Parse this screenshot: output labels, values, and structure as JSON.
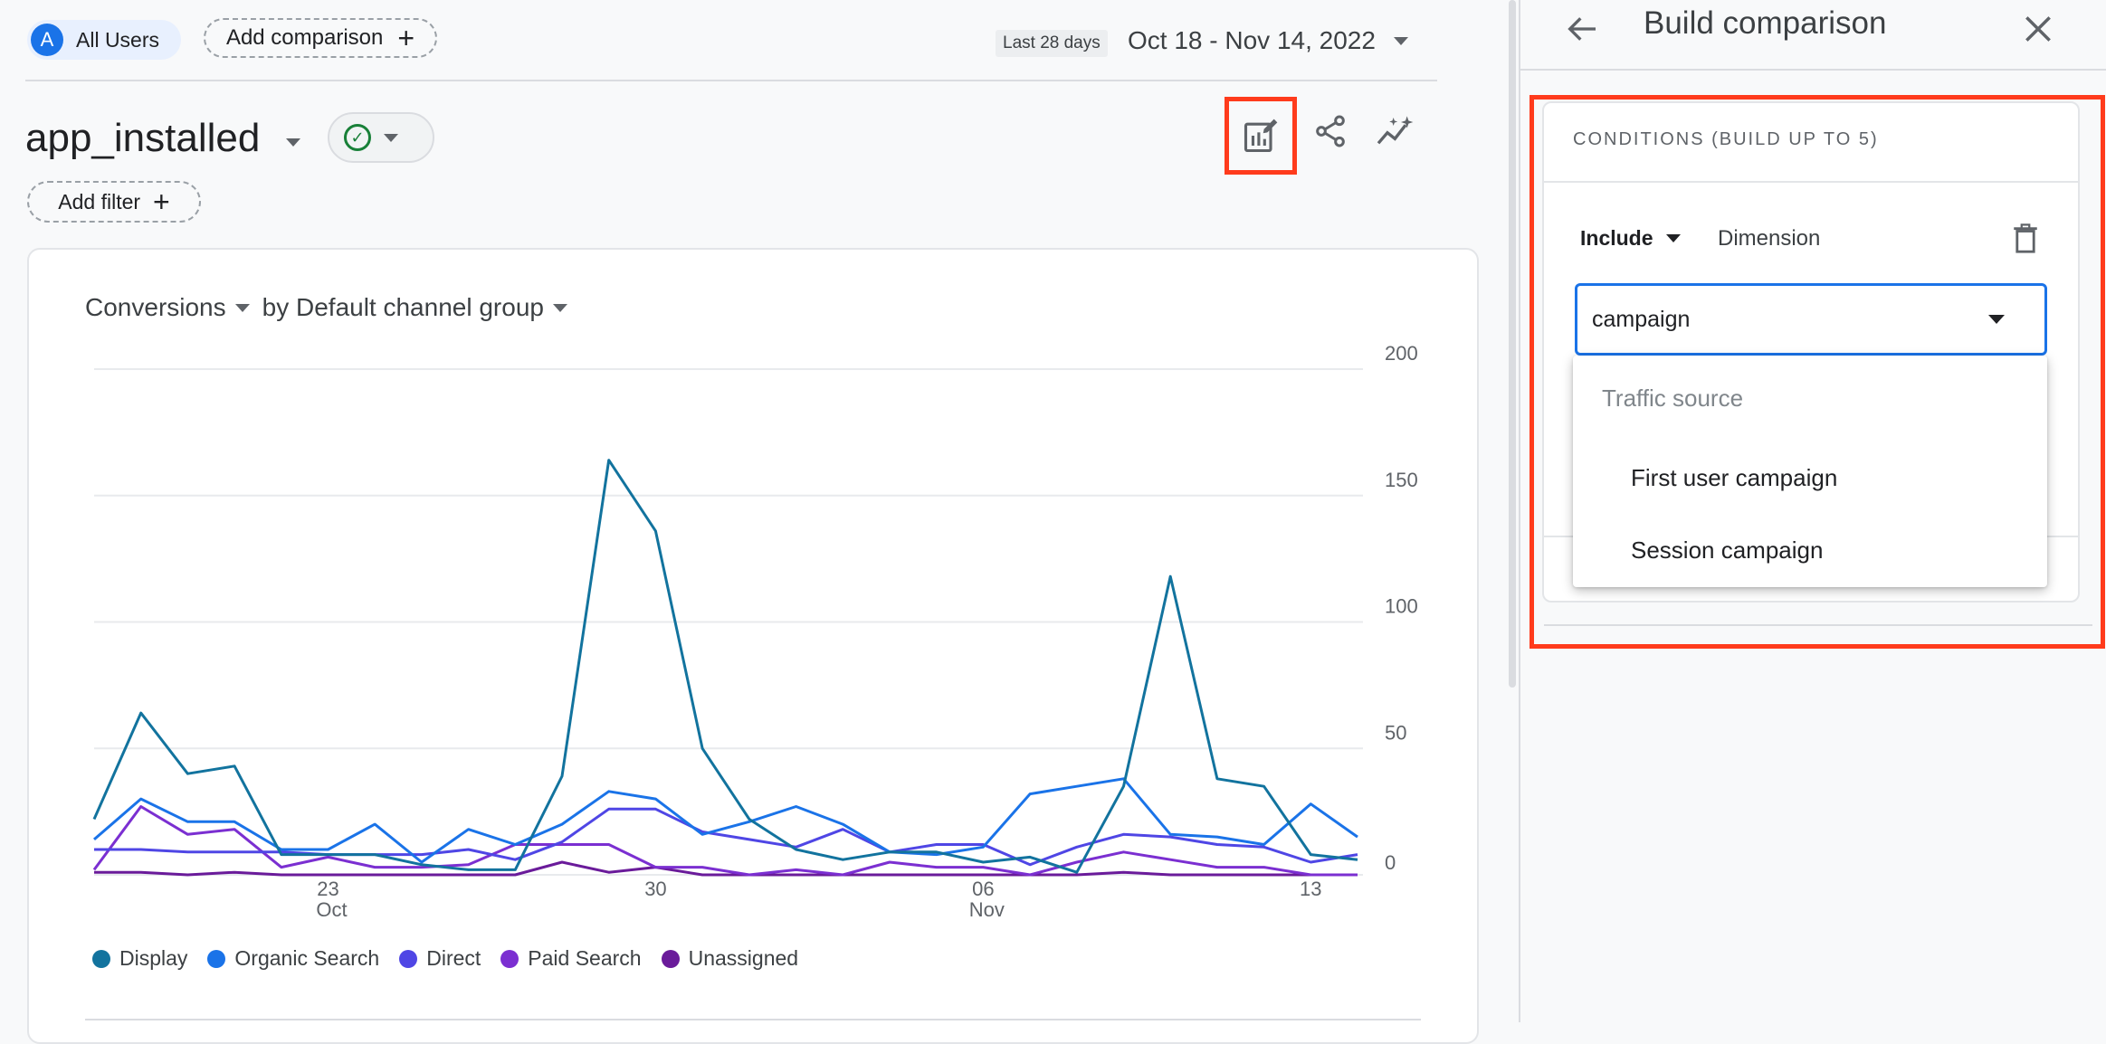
{
  "header": {
    "segment_avatar": "A",
    "segment_label": "All Users",
    "add_comparison_label": "Add comparison",
    "date_tag": "Last 28 days",
    "date_range": "Oct 18 - Nov 14, 2022"
  },
  "report": {
    "event_title": "app_installed",
    "add_filter_label": "Add filter",
    "metric_label": "Conversions",
    "dimension_label": "by Default channel group"
  },
  "icons": {
    "edit_report": "edit-report-icon",
    "share": "share-icon",
    "insights": "insights-icon"
  },
  "colors": {
    "accent": "#1a73e8",
    "highlight": "#ff3b1c",
    "success": "#188038"
  },
  "chart_data": {
    "type": "line",
    "x": [
      "Oct 18",
      "Oct 19",
      "Oct 20",
      "Oct 21",
      "Oct 22",
      "Oct 23",
      "Oct 24",
      "Oct 25",
      "Oct 26",
      "Oct 27",
      "Oct 28",
      "Oct 29",
      "Oct 30",
      "Oct 31",
      "Nov 1",
      "Nov 2",
      "Nov 3",
      "Nov 4",
      "Nov 5",
      "Nov 6",
      "Nov 7",
      "Nov 8",
      "Nov 9",
      "Nov 10",
      "Nov 11",
      "Nov 12",
      "Nov 13",
      "Nov 14"
    ],
    "x_tick_labels": [
      {
        "index": 5,
        "label": "23",
        "sub": "Oct"
      },
      {
        "index": 12,
        "label": "30",
        "sub": ""
      },
      {
        "index": 19,
        "label": "06",
        "sub": "Nov"
      },
      {
        "index": 26,
        "label": "13",
        "sub": ""
      }
    ],
    "y_ticks": [
      "200",
      "150",
      "100",
      "50",
      "0"
    ],
    "ylim": [
      0,
      200
    ],
    "grid": true,
    "legend_position": "bottom-left",
    "series": [
      {
        "name": "Display",
        "color": "#12739e",
        "values": [
          22,
          64,
          40,
          43,
          8,
          8,
          8,
          4,
          2,
          2,
          39,
          164,
          136,
          50,
          22,
          10,
          6,
          9,
          9,
          5,
          7,
          1,
          35,
          118,
          38,
          35,
          8,
          6
        ]
      },
      {
        "name": "Organic Search",
        "color": "#1a73e8",
        "values": [
          14,
          30,
          21,
          21,
          10,
          10,
          20,
          5,
          18,
          12,
          20,
          33,
          30,
          16,
          21,
          27,
          20,
          9,
          8,
          11,
          32,
          35,
          38,
          16,
          15,
          12,
          28,
          15
        ]
      },
      {
        "name": "Direct",
        "color": "#4f46e5",
        "values": [
          10,
          10,
          9,
          9,
          9,
          8,
          8,
          8,
          10,
          6,
          13,
          26,
          26,
          17,
          14,
          11,
          18,
          9,
          12,
          12,
          4,
          11,
          16,
          15,
          12,
          11,
          5,
          8
        ]
      },
      {
        "name": "Paid Search",
        "color": "#7b2fd1",
        "values": [
          2,
          27,
          16,
          18,
          3,
          7,
          3,
          3,
          4,
          12,
          12,
          12,
          3,
          3,
          0,
          2,
          0,
          5,
          3,
          3,
          0,
          5,
          9,
          6,
          3,
          3,
          0,
          0
        ]
      },
      {
        "name": "Unassigned",
        "color": "#6a1b9a",
        "values": [
          1,
          1,
          0,
          1,
          0,
          0,
          0,
          0,
          0,
          0,
          5,
          1,
          3,
          0,
          0,
          0,
          0,
          0,
          0,
          0,
          0,
          0,
          1,
          0,
          0,
          0,
          0,
          0
        ]
      }
    ]
  },
  "panel": {
    "title": "Build comparison",
    "conditions_heading": "CONDITIONS (BUILD UP TO 5)",
    "include_label": "Include",
    "dimension_placeholder": "Dimension",
    "search_value": "campaign",
    "dropdown": {
      "group_label": "Traffic source",
      "options": [
        "First user campaign",
        "Session campaign"
      ]
    }
  }
}
